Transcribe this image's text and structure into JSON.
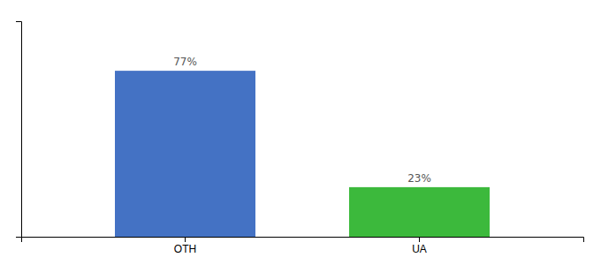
{
  "chart_data": {
    "type": "bar",
    "categories": [
      "OTH",
      "UA"
    ],
    "values": [
      77,
      23
    ],
    "value_labels": [
      "77%",
      "23%"
    ],
    "colors": [
      "#4472C4",
      "#3CB93C"
    ],
    "ylim": [
      0,
      100
    ],
    "data_labels": true,
    "tick_labels": "x",
    "grid": false
  }
}
